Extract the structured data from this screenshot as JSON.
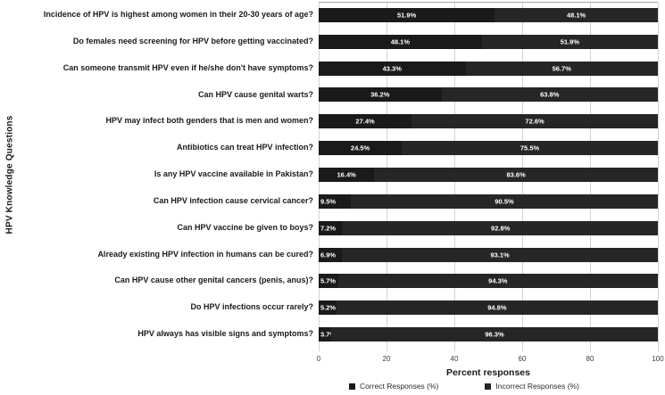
{
  "chart_data": {
    "type": "bar",
    "orientation": "horizontal",
    "stacked": true,
    "title": "",
    "xlabel": "Percent responses",
    "ylabel": "HPV Knowledge Questions",
    "xlim": [
      0,
      100
    ],
    "x_ticks": [
      0,
      20,
      40,
      60,
      80,
      100
    ],
    "grid": true,
    "legend_position": "bottom",
    "categories": [
      "Incidence of HPV is highest among women in their 20-30 years of age?",
      "Do females need screening for HPV before getting vaccinated?",
      "Can someone transmit HPV even if he/she don't have symptoms?",
      "Can HPV cause genital warts?",
      "HPV may infect both genders that is men and women?",
      "Antibiotics can treat HPV infection?",
      "Is any HPV vaccine available in Pakistan?",
      "Can HPV infection cause cervical cancer?",
      "Can HPV vaccine be given to boys?",
      "Already existing HPV infection in humans can be cured?",
      "Can HPV cause other genital cancers (penis, anus)?",
      "Do HPV infections occur rarely?",
      "HPV always has visible signs and symptoms?"
    ],
    "series": [
      {
        "name": "Correct Responses (%)",
        "color": "#1a1a1a",
        "values": [
          51.9,
          48.1,
          43.3,
          36.2,
          27.4,
          24.5,
          16.4,
          9.5,
          7.2,
          6.9,
          5.7,
          5.2,
          3.7
        ]
      },
      {
        "name": "Incorrect Responses (%)",
        "color": "#262626",
        "values": [
          48.1,
          51.9,
          56.7,
          63.8,
          72.6,
          75.5,
          83.6,
          90.5,
          92.8,
          93.1,
          94.3,
          94.8,
          96.3
        ]
      }
    ],
    "colors": {
      "gridline": "#d2d2d2",
      "plot_top_border": "#a6a6a6",
      "value_label_text": "#ffffff",
      "question_text": "#1a1a1a"
    }
  }
}
